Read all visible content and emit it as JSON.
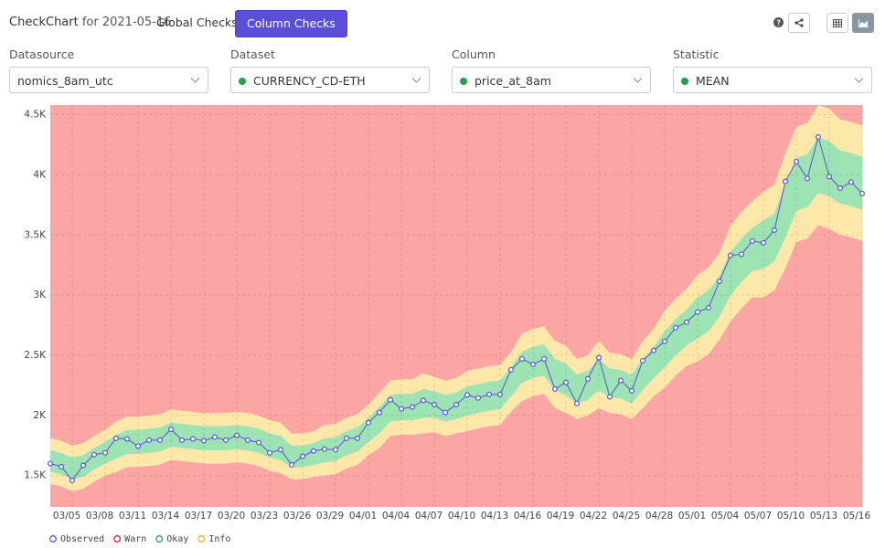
{
  "header": {
    "app": "CheckChart",
    "date_label": "for 2021-05-16",
    "tabs": [
      "Global Checks",
      "Column Checks"
    ]
  },
  "filters": [
    {
      "label": "Datasource",
      "value": "nomics_8am_utc"
    },
    {
      "label": "Dataset",
      "value": "CURRENCY_CD-ETH"
    },
    {
      "label": "Column",
      "value": "price_at_8am"
    },
    {
      "label": "Statistic",
      "value": "MEAN"
    }
  ],
  "chart_data": {
    "type": "line",
    "categories": [
      null,
      null,
      "03/05",
      null,
      null,
      "03/08",
      null,
      null,
      "03/11",
      null,
      null,
      "03/14",
      null,
      null,
      "03/17",
      null,
      null,
      "03/20",
      null,
      null,
      "03/23",
      null,
      null,
      "03/26",
      null,
      null,
      "03/29",
      null,
      null,
      "04/01",
      null,
      null,
      "04/04",
      null,
      null,
      "04/07",
      null,
      null,
      "04/10",
      null,
      null,
      "04/13",
      null,
      null,
      "04/16",
      null,
      null,
      "04/19",
      null,
      null,
      "04/22",
      null,
      null,
      "04/25",
      null,
      null,
      "04/28",
      null,
      null,
      "05/01",
      null,
      null,
      "05/04",
      null,
      null,
      "05/07",
      null,
      null,
      "05/10",
      null,
      null,
      "05/13",
      null,
      null,
      "05/16"
    ],
    "series": [
      {
        "name": "Observed",
        "color": "#5552d4",
        "values": [
          1600,
          1575,
          1460,
          1585,
          1675,
          1690,
          1810,
          1805,
          1745,
          1795,
          1795,
          1885,
          1795,
          1805,
          1790,
          1820,
          1795,
          1835,
          1795,
          1775,
          1690,
          1715,
          1590,
          1660,
          1705,
          1720,
          1715,
          1810,
          1810,
          1940,
          2025,
          2130,
          2055,
          2070,
          2125,
          2090,
          2025,
          2090,
          2170,
          2145,
          2175,
          2175,
          2380,
          2470,
          2425,
          2470,
          2220,
          2275,
          2100,
          2305,
          2480,
          2155,
          2290,
          2205,
          2455,
          2540,
          2615,
          2730,
          2775,
          2860,
          2895,
          3115,
          3330,
          3340,
          3450,
          3435,
          3540,
          3945,
          4110,
          3970,
          4315,
          3985,
          3890,
          3940,
          3845
        ]
      }
    ],
    "background": {
      "name": "Warn",
      "color": "#fca5a5",
      "legend_color": "#e02424"
    },
    "bands": [
      {
        "name": "Info",
        "color": "#fde7a9",
        "legend_color": "#f0a92e",
        "lower": [
          1430,
          1410,
          1370,
          1390,
          1450,
          1500,
          1530,
          1570,
          1570,
          1580,
          1590,
          1630,
          1620,
          1610,
          1600,
          1600,
          1600,
          1610,
          1600,
          1580,
          1540,
          1520,
          1470,
          1470,
          1490,
          1500,
          1510,
          1560,
          1590,
          1670,
          1730,
          1830,
          1840,
          1840,
          1850,
          1860,
          1830,
          1850,
          1870,
          1890,
          1910,
          1920,
          2030,
          2120,
          2160,
          2180,
          2060,
          2020,
          1970,
          2000,
          2060,
          2020,
          2010,
          1970,
          2060,
          2160,
          2230,
          2330,
          2410,
          2450,
          2510,
          2630,
          2780,
          2890,
          2980,
          2980,
          3040,
          3220,
          3440,
          3470,
          3580,
          3550,
          3500,
          3480,
          3450
        ],
        "upper": [
          1810,
          1790,
          1750,
          1770,
          1830,
          1880,
          1950,
          1990,
          1990,
          2000,
          2010,
          2050,
          2040,
          2030,
          2020,
          2020,
          2020,
          2030,
          2020,
          2000,
          1960,
          1940,
          1850,
          1850,
          1870,
          1920,
          1930,
          1980,
          2010,
          2090,
          2190,
          2290,
          2300,
          2300,
          2350,
          2320,
          2290,
          2310,
          2370,
          2390,
          2410,
          2420,
          2530,
          2680,
          2720,
          2740,
          2620,
          2580,
          2470,
          2500,
          2620,
          2520,
          2510,
          2470,
          2620,
          2720,
          2870,
          2970,
          3050,
          3170,
          3230,
          3350,
          3580,
          3690,
          3780,
          3860,
          3920,
          4180,
          4400,
          4430,
          4580,
          4550,
          4460,
          4440,
          4410
        ]
      },
      {
        "name": "Okay",
        "color": "#9de3b4",
        "legend_color": "#2e9e52",
        "lower": [
          1530,
          1510,
          1470,
          1490,
          1550,
          1600,
          1640,
          1680,
          1680,
          1690,
          1700,
          1740,
          1730,
          1720,
          1710,
          1710,
          1710,
          1720,
          1710,
          1690,
          1650,
          1630,
          1570,
          1570,
          1590,
          1610,
          1620,
          1670,
          1700,
          1780,
          1850,
          1950,
          1960,
          1960,
          1980,
          1980,
          1950,
          1970,
          2000,
          2020,
          2040,
          2050,
          2160,
          2270,
          2310,
          2330,
          2210,
          2170,
          2100,
          2130,
          2210,
          2150,
          2140,
          2100,
          2210,
          2310,
          2400,
          2500,
          2580,
          2640,
          2700,
          2820,
          3000,
          3110,
          3200,
          3220,
          3280,
          3480,
          3700,
          3730,
          3850,
          3820,
          3760,
          3740,
          3710
        ],
        "upper": [
          1710,
          1690,
          1650,
          1670,
          1730,
          1780,
          1840,
          1880,
          1880,
          1890,
          1900,
          1940,
          1930,
          1920,
          1910,
          1910,
          1910,
          1920,
          1910,
          1890,
          1850,
          1830,
          1750,
          1750,
          1770,
          1810,
          1820,
          1870,
          1900,
          1980,
          2070,
          2170,
          2180,
          2180,
          2220,
          2200,
          2170,
          2190,
          2240,
          2260,
          2280,
          2290,
          2400,
          2530,
          2570,
          2590,
          2470,
          2430,
          2340,
          2370,
          2470,
          2390,
          2380,
          2340,
          2470,
          2570,
          2700,
          2800,
          2880,
          2980,
          3040,
          3160,
          3360,
          3470,
          3560,
          3620,
          3680,
          3920,
          4140,
          4170,
          4310,
          4280,
          4200,
          4180,
          4150
        ]
      }
    ],
    "ylim": [
      1240,
      4580
    ],
    "yticks": [
      {
        "value": 1500,
        "label": "1.5K"
      },
      {
        "value": 2000,
        "label": "2K"
      },
      {
        "value": 2500,
        "label": "2.5K"
      },
      {
        "value": 3000,
        "label": "3K"
      },
      {
        "value": 3500,
        "label": "3.5K"
      },
      {
        "value": 4000,
        "label": "4K"
      },
      {
        "value": 4500,
        "label": "4.5K"
      }
    ],
    "grid": true
  }
}
